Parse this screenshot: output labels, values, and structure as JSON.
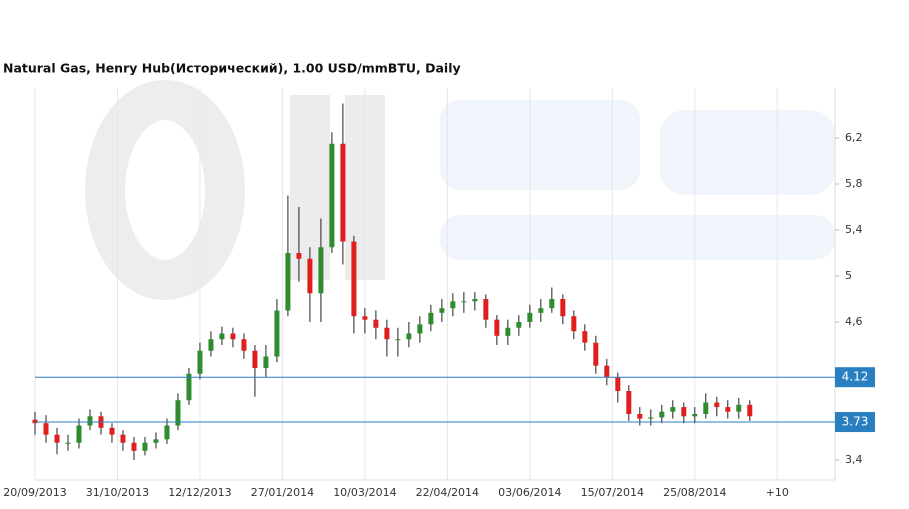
{
  "chart_data": {
    "type": "candlestick",
    "title": "Natural Gas, Henry Hub(Исторический), 1.00 USD/mmBTU, Daily",
    "x": [
      0,
      4,
      8,
      12,
      16,
      20,
      24,
      28,
      32,
      36,
      40,
      44,
      48,
      52,
      56,
      60,
      64,
      68,
      72,
      76,
      80,
      84,
      88,
      92,
      96,
      100,
      104,
      108,
      112,
      116,
      120,
      124,
      128,
      132,
      136,
      140,
      144,
      148,
      152,
      156,
      160,
      164,
      168,
      172,
      176,
      180,
      184,
      188,
      192,
      196,
      200,
      204,
      208,
      212,
      216,
      220,
      224,
      228,
      232,
      236,
      240,
      244,
      248,
      252,
      256,
      260
    ],
    "open": [
      3.75,
      3.72,
      3.62,
      3.55,
      3.55,
      3.7,
      3.78,
      3.68,
      3.62,
      3.55,
      3.48,
      3.55,
      3.58,
      3.7,
      3.92,
      4.15,
      4.35,
      4.45,
      4.5,
      4.45,
      4.35,
      4.2,
      4.3,
      4.7,
      5.2,
      5.15,
      4.85,
      5.25,
      6.15,
      5.3,
      4.65,
      4.62,
      4.55,
      4.45,
      4.45,
      4.5,
      4.58,
      4.68,
      4.72,
      4.78,
      4.78,
      4.8,
      4.62,
      4.48,
      4.55,
      4.6,
      4.68,
      4.72,
      4.8,
      4.65,
      4.52,
      4.42,
      4.22,
      4.12,
      4.0,
      3.8,
      3.76,
      3.77,
      3.82,
      3.86,
      3.78,
      3.8,
      3.9,
      3.86,
      3.82,
      3.88
    ],
    "high": [
      3.82,
      3.79,
      3.68,
      3.62,
      3.76,
      3.84,
      3.82,
      3.72,
      3.66,
      3.6,
      3.6,
      3.64,
      3.76,
      3.98,
      4.2,
      4.42,
      4.52,
      4.56,
      4.55,
      4.5,
      4.4,
      4.4,
      4.8,
      5.7,
      5.6,
      5.25,
      5.5,
      6.25,
      6.5,
      5.35,
      4.72,
      4.7,
      4.62,
      4.55,
      4.6,
      4.65,
      4.75,
      4.8,
      4.85,
      4.86,
      4.86,
      4.84,
      4.66,
      4.62,
      4.66,
      4.75,
      4.8,
      4.9,
      4.84,
      4.7,
      4.58,
      4.48,
      4.28,
      4.16,
      4.05,
      3.86,
      3.84,
      3.88,
      3.92,
      3.9,
      3.86,
      3.98,
      3.95,
      3.92,
      3.94,
      3.92
    ],
    "low": [
      3.62,
      3.55,
      3.45,
      3.48,
      3.5,
      3.66,
      3.62,
      3.55,
      3.48,
      3.4,
      3.44,
      3.5,
      3.54,
      3.66,
      3.88,
      4.1,
      4.3,
      4.4,
      4.38,
      4.28,
      3.95,
      4.12,
      4.25,
      4.65,
      4.95,
      4.6,
      4.6,
      5.2,
      5.1,
      4.5,
      4.5,
      4.45,
      4.3,
      4.3,
      4.38,
      4.42,
      4.52,
      4.6,
      4.65,
      4.68,
      4.7,
      4.55,
      4.4,
      4.4,
      4.48,
      4.55,
      4.6,
      4.68,
      4.58,
      4.45,
      4.35,
      4.15,
      4.05,
      3.9,
      3.74,
      3.7,
      3.7,
      3.72,
      3.76,
      3.72,
      3.72,
      3.76,
      3.78,
      3.76,
      3.76,
      3.74
    ],
    "close": [
      3.72,
      3.62,
      3.55,
      3.55,
      3.7,
      3.78,
      3.68,
      3.62,
      3.55,
      3.48,
      3.55,
      3.58,
      3.7,
      3.92,
      4.15,
      4.35,
      4.45,
      4.5,
      4.45,
      4.35,
      4.2,
      4.3,
      4.7,
      5.2,
      5.15,
      4.85,
      5.25,
      6.15,
      5.3,
      4.65,
      4.62,
      4.55,
      4.45,
      4.45,
      4.5,
      4.58,
      4.68,
      4.72,
      4.78,
      4.78,
      4.8,
      4.62,
      4.48,
      4.55,
      4.6,
      4.68,
      4.72,
      4.8,
      4.65,
      4.52,
      4.42,
      4.22,
      4.12,
      4.0,
      3.8,
      3.76,
      3.77,
      3.82,
      3.86,
      3.78,
      3.8,
      3.9,
      3.86,
      3.82,
      3.88,
      3.78
    ],
    "up_color": "#2e8b2e",
    "down_color": "#e01e1e",
    "levels": [
      4.12,
      3.73
    ],
    "level_color": "#2a7fc0",
    "xlim": [
      0,
      291
    ],
    "xticks": [
      {
        "value": 0,
        "label": "20/09/2013"
      },
      {
        "value": 30,
        "label": "31/10/2013"
      },
      {
        "value": 60,
        "label": "12/12/2013"
      },
      {
        "value": 90,
        "label": "27/01/2014"
      },
      {
        "value": 120,
        "label": "10/03/2014"
      },
      {
        "value": 150,
        "label": "22/04/2014"
      },
      {
        "value": 180,
        "label": "03/06/2014"
      },
      {
        "value": 210,
        "label": "15/07/2014"
      },
      {
        "value": 240,
        "label": "25/08/2014"
      },
      {
        "value": 270,
        "label": "+10"
      }
    ],
    "ylim": [
      3.226,
      6.635
    ],
    "yticks": [
      {
        "value": 3.4,
        "label": "3,4"
      },
      {
        "value": 4.6,
        "label": "4,6"
      },
      {
        "value": 5,
        "label": "5"
      },
      {
        "value": 5.4,
        "label": "5,4"
      },
      {
        "value": 5.8,
        "label": "5,8"
      },
      {
        "value": 6.2,
        "label": "6,2"
      }
    ],
    "grid": true
  }
}
